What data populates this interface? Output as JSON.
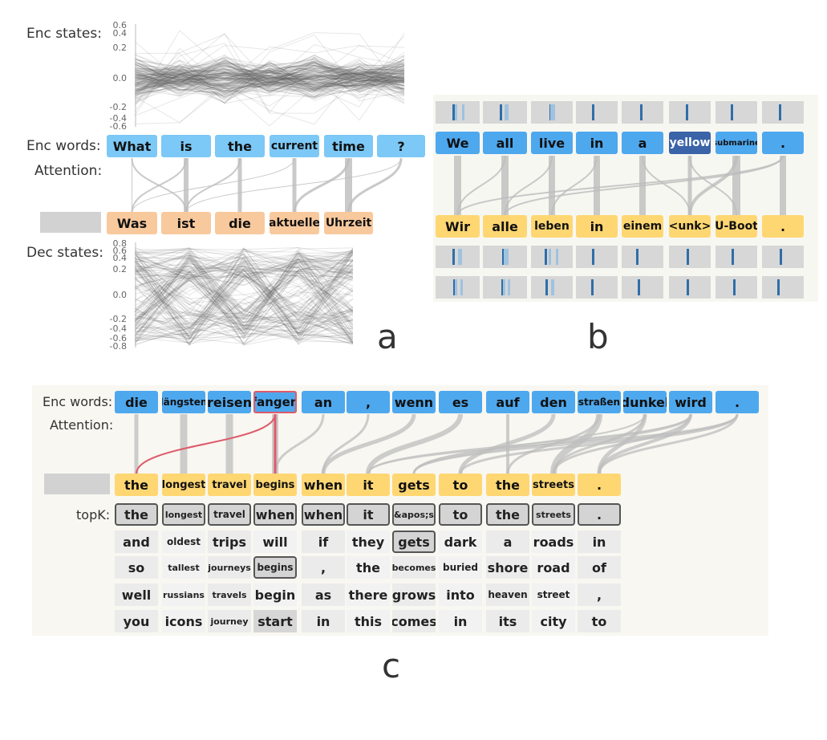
{
  "panel_a": {
    "letter": "a",
    "enc_states_label": "Enc states:",
    "enc_words_label": "Enc words:",
    "attention_label": "Attention:",
    "dec_states_label": "Dec states:",
    "enc_ticks": [
      "0.6",
      "0.4",
      "0.2",
      "0.0",
      "-0.2",
      "-0.4",
      "-0.6"
    ],
    "dec_ticks": [
      "0.8",
      "0.6",
      "0.4",
      "0.2",
      "0.0",
      "-0.2",
      "-0.4",
      "-0.6",
      "-0.8"
    ],
    "enc_words": [
      "What",
      "is",
      "the",
      "current",
      "time",
      "?"
    ],
    "dec_words": [
      "Was",
      "ist",
      "die",
      "aktuelle",
      "Uhrzeit"
    ]
  },
  "panel_b": {
    "letter": "b",
    "enc_words": [
      "We",
      "all",
      "live",
      "in",
      "a",
      "yellow",
      "submarine",
      "."
    ],
    "dec_words": [
      "Wir",
      "alle",
      "leben",
      "in",
      "einem",
      "<unk>",
      "U-Boot",
      "."
    ]
  },
  "panel_c": {
    "letter": "c",
    "enc_words_label": "Enc words:",
    "attention_label": "Attention:",
    "topk_label": "topK:",
    "enc_words": [
      "die",
      "längsten",
      "reisen",
      "fangen",
      "an",
      ",",
      "wenn",
      "es",
      "auf",
      "den",
      "straßen",
      "dunkel",
      "wird",
      "."
    ],
    "dec_words": [
      "the",
      "longest",
      "travel",
      "begins",
      "when",
      "it",
      "gets",
      "to",
      "the",
      "streets",
      "."
    ],
    "topk_rows": [
      [
        "the",
        "longest",
        "travel",
        "when",
        "when",
        "it",
        "&apos;s",
        "to",
        "the",
        "streets",
        "."
      ],
      [
        "and",
        "oldest",
        "trips",
        "will",
        "if",
        "they",
        "gets",
        "dark",
        "a",
        "roads",
        "in"
      ],
      [
        "so",
        "tallest",
        "journeys",
        "begins",
        ",",
        "the",
        "becomes",
        "buried",
        "shore",
        "road",
        "of"
      ],
      [
        "well",
        "russians",
        "travels",
        "begin",
        "as",
        "there",
        "grows",
        "into",
        "heaven",
        "street",
        ","
      ],
      [
        "you",
        "icons",
        "journey",
        "start",
        "in",
        "this",
        "comes",
        "in",
        "its",
        "city",
        "to"
      ]
    ]
  }
}
